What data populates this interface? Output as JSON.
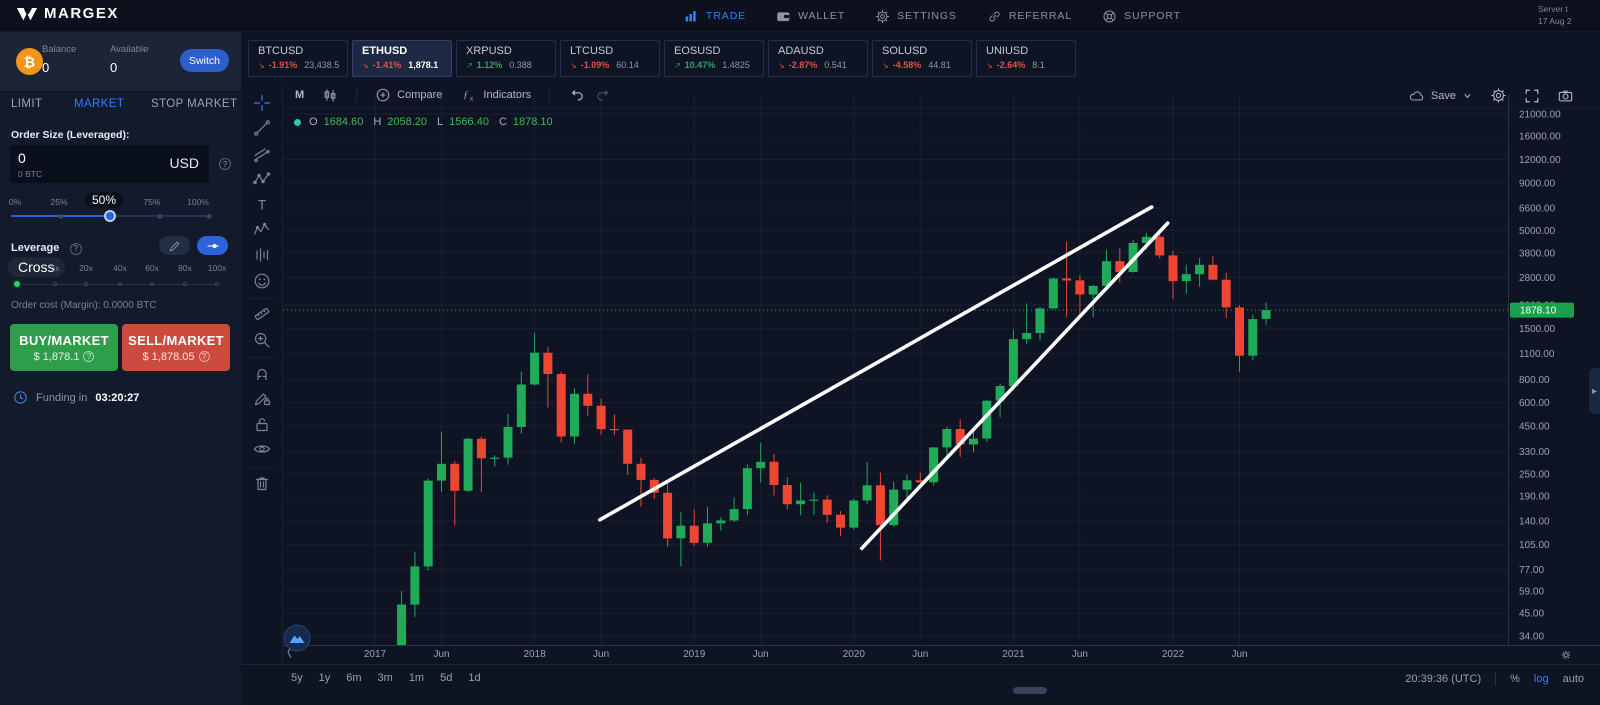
{
  "nav": {
    "brand": "MARGEX",
    "items": [
      {
        "label": "TRADE",
        "icon": "trade-icon",
        "active": true
      },
      {
        "label": "WALLET",
        "icon": "wallet-icon",
        "active": false
      },
      {
        "label": "SETTINGS",
        "icon": "settings-icon",
        "active": false
      },
      {
        "label": "REFERRAL",
        "icon": "referral-icon",
        "active": false
      },
      {
        "label": "SUPPORT",
        "icon": "support-icon",
        "active": false
      }
    ],
    "server_time_line1": "Server t",
    "server_time_line2": "17 Aug 2"
  },
  "account": {
    "balance_label": "Balance",
    "balance_value": "0",
    "available_label": "Available",
    "available_value": "0",
    "switch_label": "Switch"
  },
  "order_panel": {
    "tabs": [
      {
        "label": "LIMIT",
        "active": false
      },
      {
        "label": "MARKET",
        "active": true
      },
      {
        "label": "STOP MARKET",
        "active": false
      }
    ],
    "order_size_label": "Order Size (Leveraged):",
    "size_value": "0",
    "size_sub": "0 BTC",
    "size_unit": "USD",
    "size_marks": [
      "0%",
      "25%",
      "50%",
      "75%",
      "100%"
    ],
    "size_current": "50%",
    "leverage_label": "Leverage",
    "leverage_mode": "Cross",
    "leverage_marks": [
      "5x",
      "20x",
      "40x",
      "60x",
      "80x",
      "100x"
    ],
    "order_cost": "Order cost (Margin): 0.0000 BTC",
    "buy_label": "BUY/MARKET",
    "buy_price": "$ 1,878.1",
    "sell_label": "SELL/MARKET",
    "sell_price": "$ 1,878.05",
    "funding_label": "Funding in",
    "funding_time": "03:20:27"
  },
  "tickers": [
    {
      "symbol": "BTCUSD",
      "change": "-1.91%",
      "price": "23,438.5",
      "dir": "down",
      "active": false
    },
    {
      "symbol": "ETHUSD",
      "change": "-1.41%",
      "price": "1,878.1",
      "dir": "down",
      "active": true
    },
    {
      "symbol": "XRPUSD",
      "change": "1.12%",
      "price": "0.388",
      "dir": "up",
      "active": false
    },
    {
      "symbol": "LTCUSD",
      "change": "-1.09%",
      "price": "60.14",
      "dir": "down",
      "active": false
    },
    {
      "symbol": "EOSUSD",
      "change": "10.47%",
      "price": "1.4825",
      "dir": "up",
      "active": false
    },
    {
      "symbol": "ADAUSD",
      "change": "-2.87%",
      "price": "0.541",
      "dir": "down",
      "active": false
    },
    {
      "symbol": "SOLUSD",
      "change": "-4.58%",
      "price": "44.81",
      "dir": "down",
      "active": false
    },
    {
      "symbol": "UNIUSD",
      "change": "-2.64%",
      "price": "8.1",
      "dir": "down",
      "active": false
    }
  ],
  "chart_toolbar": {
    "timeframe": "M",
    "compare_label": "Compare",
    "indicators_label": "Indicators",
    "save_label": "Save"
  },
  "drawing_toolbar": [
    "crosshair",
    "trend-line",
    "fib",
    "pattern",
    "text",
    "elliott",
    "forecast",
    "emoji",
    "sep",
    "ruler",
    "zoom",
    "sep",
    "magnet",
    "draw-lock",
    "lock",
    "eye",
    "sep",
    "trash"
  ],
  "legend": {
    "o_label": "O",
    "o": "1684.60",
    "h_label": "H",
    "h": "2058.20",
    "l_label": "L",
    "l": "1566.40",
    "c_label": "C",
    "c": "1878.10"
  },
  "bottom_bar": {
    "ranges": [
      "5y",
      "1y",
      "6m",
      "3m",
      "1m",
      "5d",
      "1d"
    ],
    "clock": "20:39:36 (UTC)",
    "percent_label": "%",
    "log_label": "log",
    "auto_label": "auto"
  },
  "colors": {
    "up": "#1fab58",
    "down": "#ef4634",
    "accent": "#2e7fff",
    "current_price_line": "#2aa84f",
    "price_tag_bg": "#17a24b",
    "trendline": "#ffffff"
  },
  "chart_data": {
    "type": "candlestick",
    "symbol": "ETHUSD",
    "timeframe": "monthly",
    "scale": "log",
    "start_month": "2017-03",
    "current_price": 1878.1,
    "price_tag": "1878.10",
    "price_axis_ticks": [
      21000,
      16000,
      12000,
      9000,
      6600,
      5000,
      3800,
      2800,
      2000,
      1500,
      1100,
      800,
      600,
      450,
      330,
      250,
      190,
      140,
      105,
      77,
      59,
      45,
      34
    ],
    "time_axis_labels": [
      {
        "label": "2017",
        "month": "2017-01"
      },
      {
        "label": "Jun",
        "month": "2017-06"
      },
      {
        "label": "2018",
        "month": "2018-01"
      },
      {
        "label": "Jun",
        "month": "2018-06"
      },
      {
        "label": "2019",
        "month": "2019-01"
      },
      {
        "label": "Jun",
        "month": "2019-06"
      },
      {
        "label": "2020",
        "month": "2020-01"
      },
      {
        "label": "Jun",
        "month": "2020-06"
      },
      {
        "label": "2021",
        "month": "2021-01"
      },
      {
        "label": "Jun",
        "month": "2021-06"
      },
      {
        "label": "2022",
        "month": "2022-01"
      },
      {
        "label": "Jun",
        "month": "2022-06"
      }
    ],
    "candles_ohlc": [
      [
        16,
        59,
        15,
        50
      ],
      [
        50,
        96,
        43,
        80
      ],
      [
        80,
        236,
        76,
        230
      ],
      [
        230,
        420,
        201,
        283
      ],
      [
        283,
        294,
        133,
        203
      ],
      [
        203,
        390,
        200,
        385
      ],
      [
        385,
        395,
        200,
        303
      ],
      [
        303,
        314,
        274,
        305
      ],
      [
        305,
        522,
        280,
        445
      ],
      [
        445,
        881,
        410,
        751
      ],
      [
        751,
        1420,
        742,
        1111
      ],
      [
        1111,
        1190,
        565,
        855
      ],
      [
        855,
        880,
        368,
        396
      ],
      [
        396,
        715,
        362,
        670
      ],
      [
        670,
        850,
        510,
        578
      ],
      [
        578,
        630,
        404,
        434
      ],
      [
        434,
        520,
        403,
        431
      ],
      [
        431,
        433,
        247,
        283
      ],
      [
        283,
        305,
        167,
        232
      ],
      [
        232,
        238,
        184,
        198
      ],
      [
        198,
        222,
        102,
        113
      ],
      [
        113,
        157,
        80,
        132
      ],
      [
        132,
        162,
        103,
        107
      ],
      [
        107,
        166,
        102,
        136
      ],
      [
        136,
        147,
        124,
        141
      ],
      [
        141,
        187,
        138,
        162
      ],
      [
        162,
        281,
        150,
        268
      ],
      [
        268,
        366,
        225,
        290
      ],
      [
        290,
        319,
        192,
        218
      ],
      [
        218,
        239,
        162,
        172
      ],
      [
        172,
        224,
        150,
        180
      ],
      [
        180,
        199,
        151,
        182
      ],
      [
        182,
        192,
        137,
        151
      ],
      [
        151,
        158,
        116,
        129
      ],
      [
        129,
        184,
        126,
        180
      ],
      [
        180,
        289,
        172,
        217
      ],
      [
        217,
        254,
        86,
        133
      ],
      [
        133,
        227,
        130,
        206
      ],
      [
        206,
        248,
        176,
        231
      ],
      [
        231,
        254,
        216,
        225
      ],
      [
        225,
        347,
        216,
        346
      ],
      [
        346,
        446,
        313,
        434
      ],
      [
        434,
        489,
        308,
        359
      ],
      [
        359,
        420,
        325,
        386
      ],
      [
        386,
        621,
        370,
        615
      ],
      [
        615,
        760,
        502,
        737
      ],
      [
        737,
        1476,
        696,
        1314
      ],
      [
        1314,
        2042,
        1240,
        1416
      ],
      [
        1416,
        1947,
        1293,
        1918
      ],
      [
        1918,
        2798,
        1888,
        2772
      ],
      [
        2772,
        4362,
        1728,
        2706
      ],
      [
        2706,
        2891,
        1700,
        2274
      ],
      [
        2274,
        2550,
        1718,
        2530
      ],
      [
        2530,
        3950,
        2450,
        3430
      ],
      [
        3430,
        4025,
        2650,
        3001
      ],
      [
        3001,
        4460,
        2970,
        4290
      ],
      [
        4290,
        4868,
        3960,
        4630
      ],
      [
        4630,
        4780,
        3550,
        3683
      ],
      [
        3683,
        3916,
        2160,
        2685
      ],
      [
        2685,
        3285,
        2300,
        2920
      ],
      [
        2920,
        3580,
        2500,
        3280
      ],
      [
        3280,
        3650,
        2700,
        2730
      ],
      [
        2730,
        2970,
        1700,
        1940
      ],
      [
        1940,
        2000,
        880,
        1070
      ],
      [
        1070,
        1780,
        1010,
        1680
      ],
      [
        1684.6,
        2058.2,
        1566.4,
        1878.1
      ]
    ],
    "trendlines": [
      {
        "from_month_index": 14.9,
        "from_price": 142,
        "to_month_index": 56.4,
        "to_price": 6680
      },
      {
        "from_month_index": 34.6,
        "from_price": 100,
        "to_month_index": 57.6,
        "to_price": 5480
      }
    ]
  }
}
